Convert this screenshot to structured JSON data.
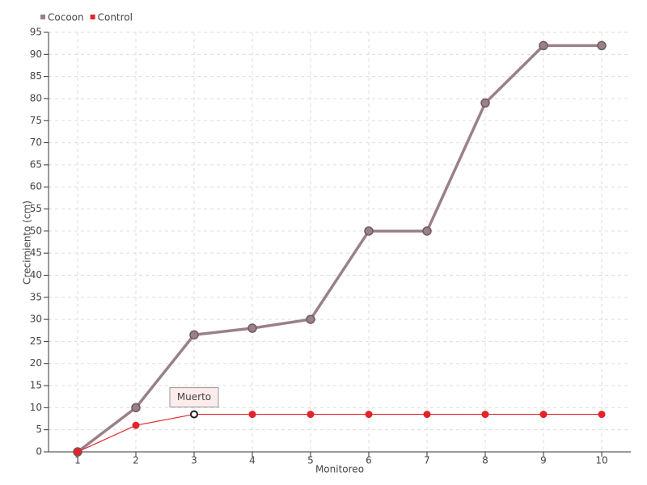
{
  "chart_data": {
    "type": "line",
    "x_label": "Monitoreo",
    "y_label": "Crecimiento (cm)",
    "categories": [
      "1",
      "2",
      "3",
      "4",
      "5",
      "6",
      "7",
      "8",
      "9",
      "10"
    ],
    "series": [
      {
        "name": "Cocoon",
        "color": "#9a8087",
        "values": [
          0,
          10,
          26.5,
          28,
          30,
          50,
          50,
          79,
          92,
          92
        ]
      },
      {
        "name": "Control",
        "color": "#e3242b",
        "values": [
          0,
          6,
          8.5,
          8.5,
          8.5,
          8.5,
          8.5,
          8.5,
          8.5,
          8.5
        ],
        "point_labels": [
          null,
          null,
          "Muerto",
          null,
          null,
          null,
          null,
          null,
          null,
          null
        ]
      }
    ],
    "ylim": [
      0,
      95
    ],
    "yticks": [
      0,
      5,
      10,
      15,
      20,
      25,
      30,
      35,
      40,
      45,
      50,
      55,
      60,
      65,
      70,
      75,
      80,
      85,
      90,
      95
    ],
    "grid": true,
    "legend": "top-left"
  }
}
